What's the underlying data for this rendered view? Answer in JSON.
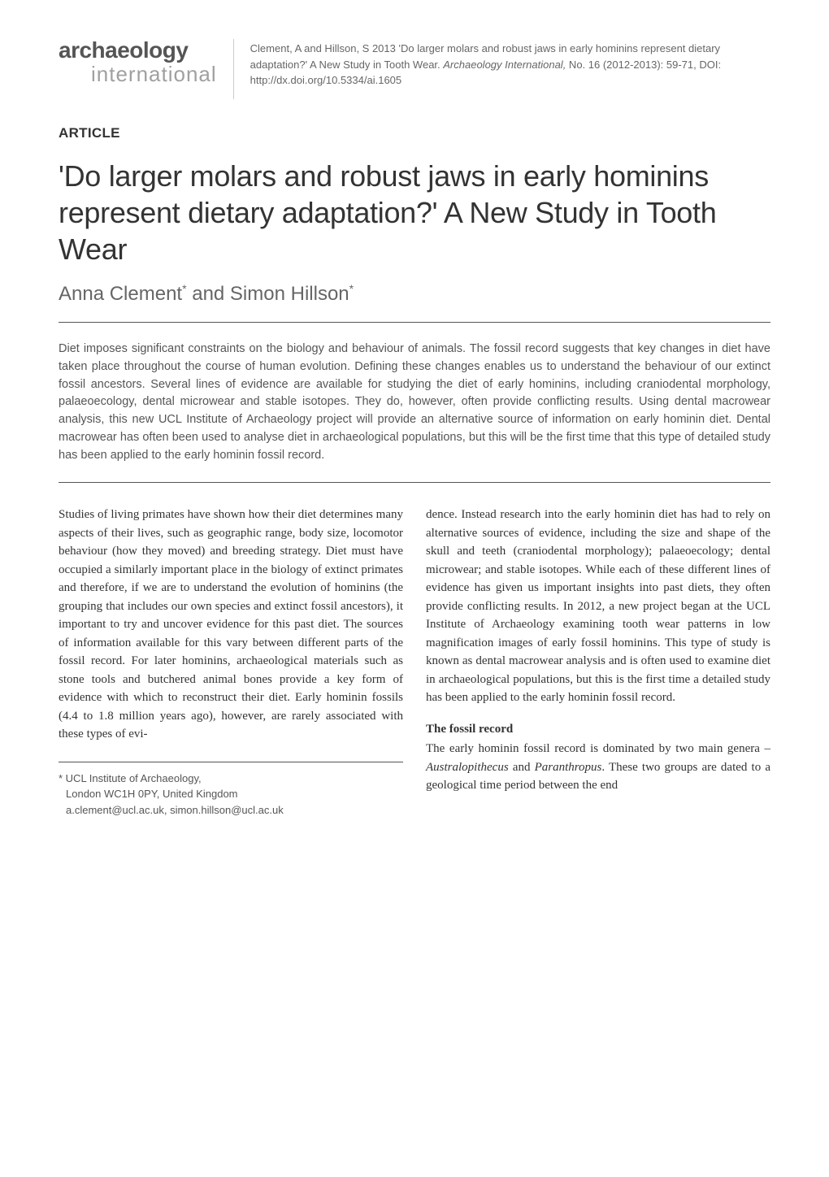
{
  "header": {
    "logo_top": "archaeology",
    "logo_bottom": "international",
    "citation": "Clement, A and Hillson, S 2013 'Do larger molars and robust jaws in early hominins represent dietary adaptation?' A New Study in Tooth Wear. Archaeology International, No. 16 (2012-2013): 59-71, DOI: http://dx.doi.org/10.5334/ai.1605",
    "citation_italic_part": "Archaeology International,"
  },
  "article_label": "ARTICLE",
  "title": "'Do larger molars and robust jaws in early hominins represent dietary adaptation?' A New Study in Tooth Wear",
  "authors": "Anna Clement* and Simon Hillson*",
  "abstract": "Diet imposes significant constraints on the biology and behaviour of animals. The fossil record suggests that key changes in diet have taken place throughout the course of human evolution. Defining these changes enables us to understand the behaviour of our extinct fossil ancestors. Several lines of evidence are available for studying the diet of early hominins, including craniodental morphology, palaeoecology, dental microwear and stable isotopes. They do, however, often provide conflicting results. Using dental macrowear analysis, this new UCL Institute of Archaeology project will provide an alternative source of information on early hominin diet. Dental macrowear has often been used to analyse diet in archaeological populations, but this will be the first time that this type of detailed study has been applied to the early hominin fossil record.",
  "body": {
    "col1": {
      "p1": "Studies of living primates have shown how their diet determines many aspects of their lives, such as geographic range, body size, locomotor behaviour (how they moved) and breeding strategy. Diet must have occupied a similarly important place in the biology of extinct primates and therefore, if we are to understand the evolution of hominins (the grouping that includes our own species and extinct fossil ancestors), it important to try and uncover evidence for this past diet. The sources of information available for this vary between different parts of the fossil record. For later hominins, archaeological materials such as stone tools and butchered animal bones provide a key form of evidence with which to reconstruct their diet. Early hominin fossils (4.4 to 1.8 million years ago), however, are rarely associated with these types of evi-"
    },
    "col2": {
      "p1": "dence. Instead research into the early hominin diet has had to rely on alternative sources of evidence, including the size and shape of the skull and teeth (craniodental morphology); palaeoecology; dental microwear; and stable isotopes. While each of these different lines of evidence has given us important insights into past diets, they often provide conflicting results. In 2012, a new project began at the UCL Institute of Archaeology examining tooth wear patterns in low magnification images of early fossil hominins. This type of study is known as dental macrowear analysis and is often used to examine diet in archaeological populations, but this is the first time a detailed study has been applied to the early hominin fossil record.",
      "heading": "The fossil record",
      "p2_pre": "The early hominin fossil record is dominated by two main genera – ",
      "p2_i1": "Australopithecus",
      "p2_mid": " and ",
      "p2_i2": "Paranthropus",
      "p2_post": ". These two groups are dated to a geological time period between the end"
    }
  },
  "footnote": {
    "line1": "* UCL Institute of Archaeology,",
    "line2": "London WC1H 0PY, United Kingdom",
    "line3": "a.clement@ucl.ac.uk, simon.hillson@ucl.ac.uk"
  },
  "style": {
    "page_bg": "#ffffff",
    "text_color": "#333333",
    "muted_color": "#666666",
    "logo_top_color": "#555555",
    "logo_bottom_color": "#a0a0a0",
    "rule_color": "#555555"
  }
}
